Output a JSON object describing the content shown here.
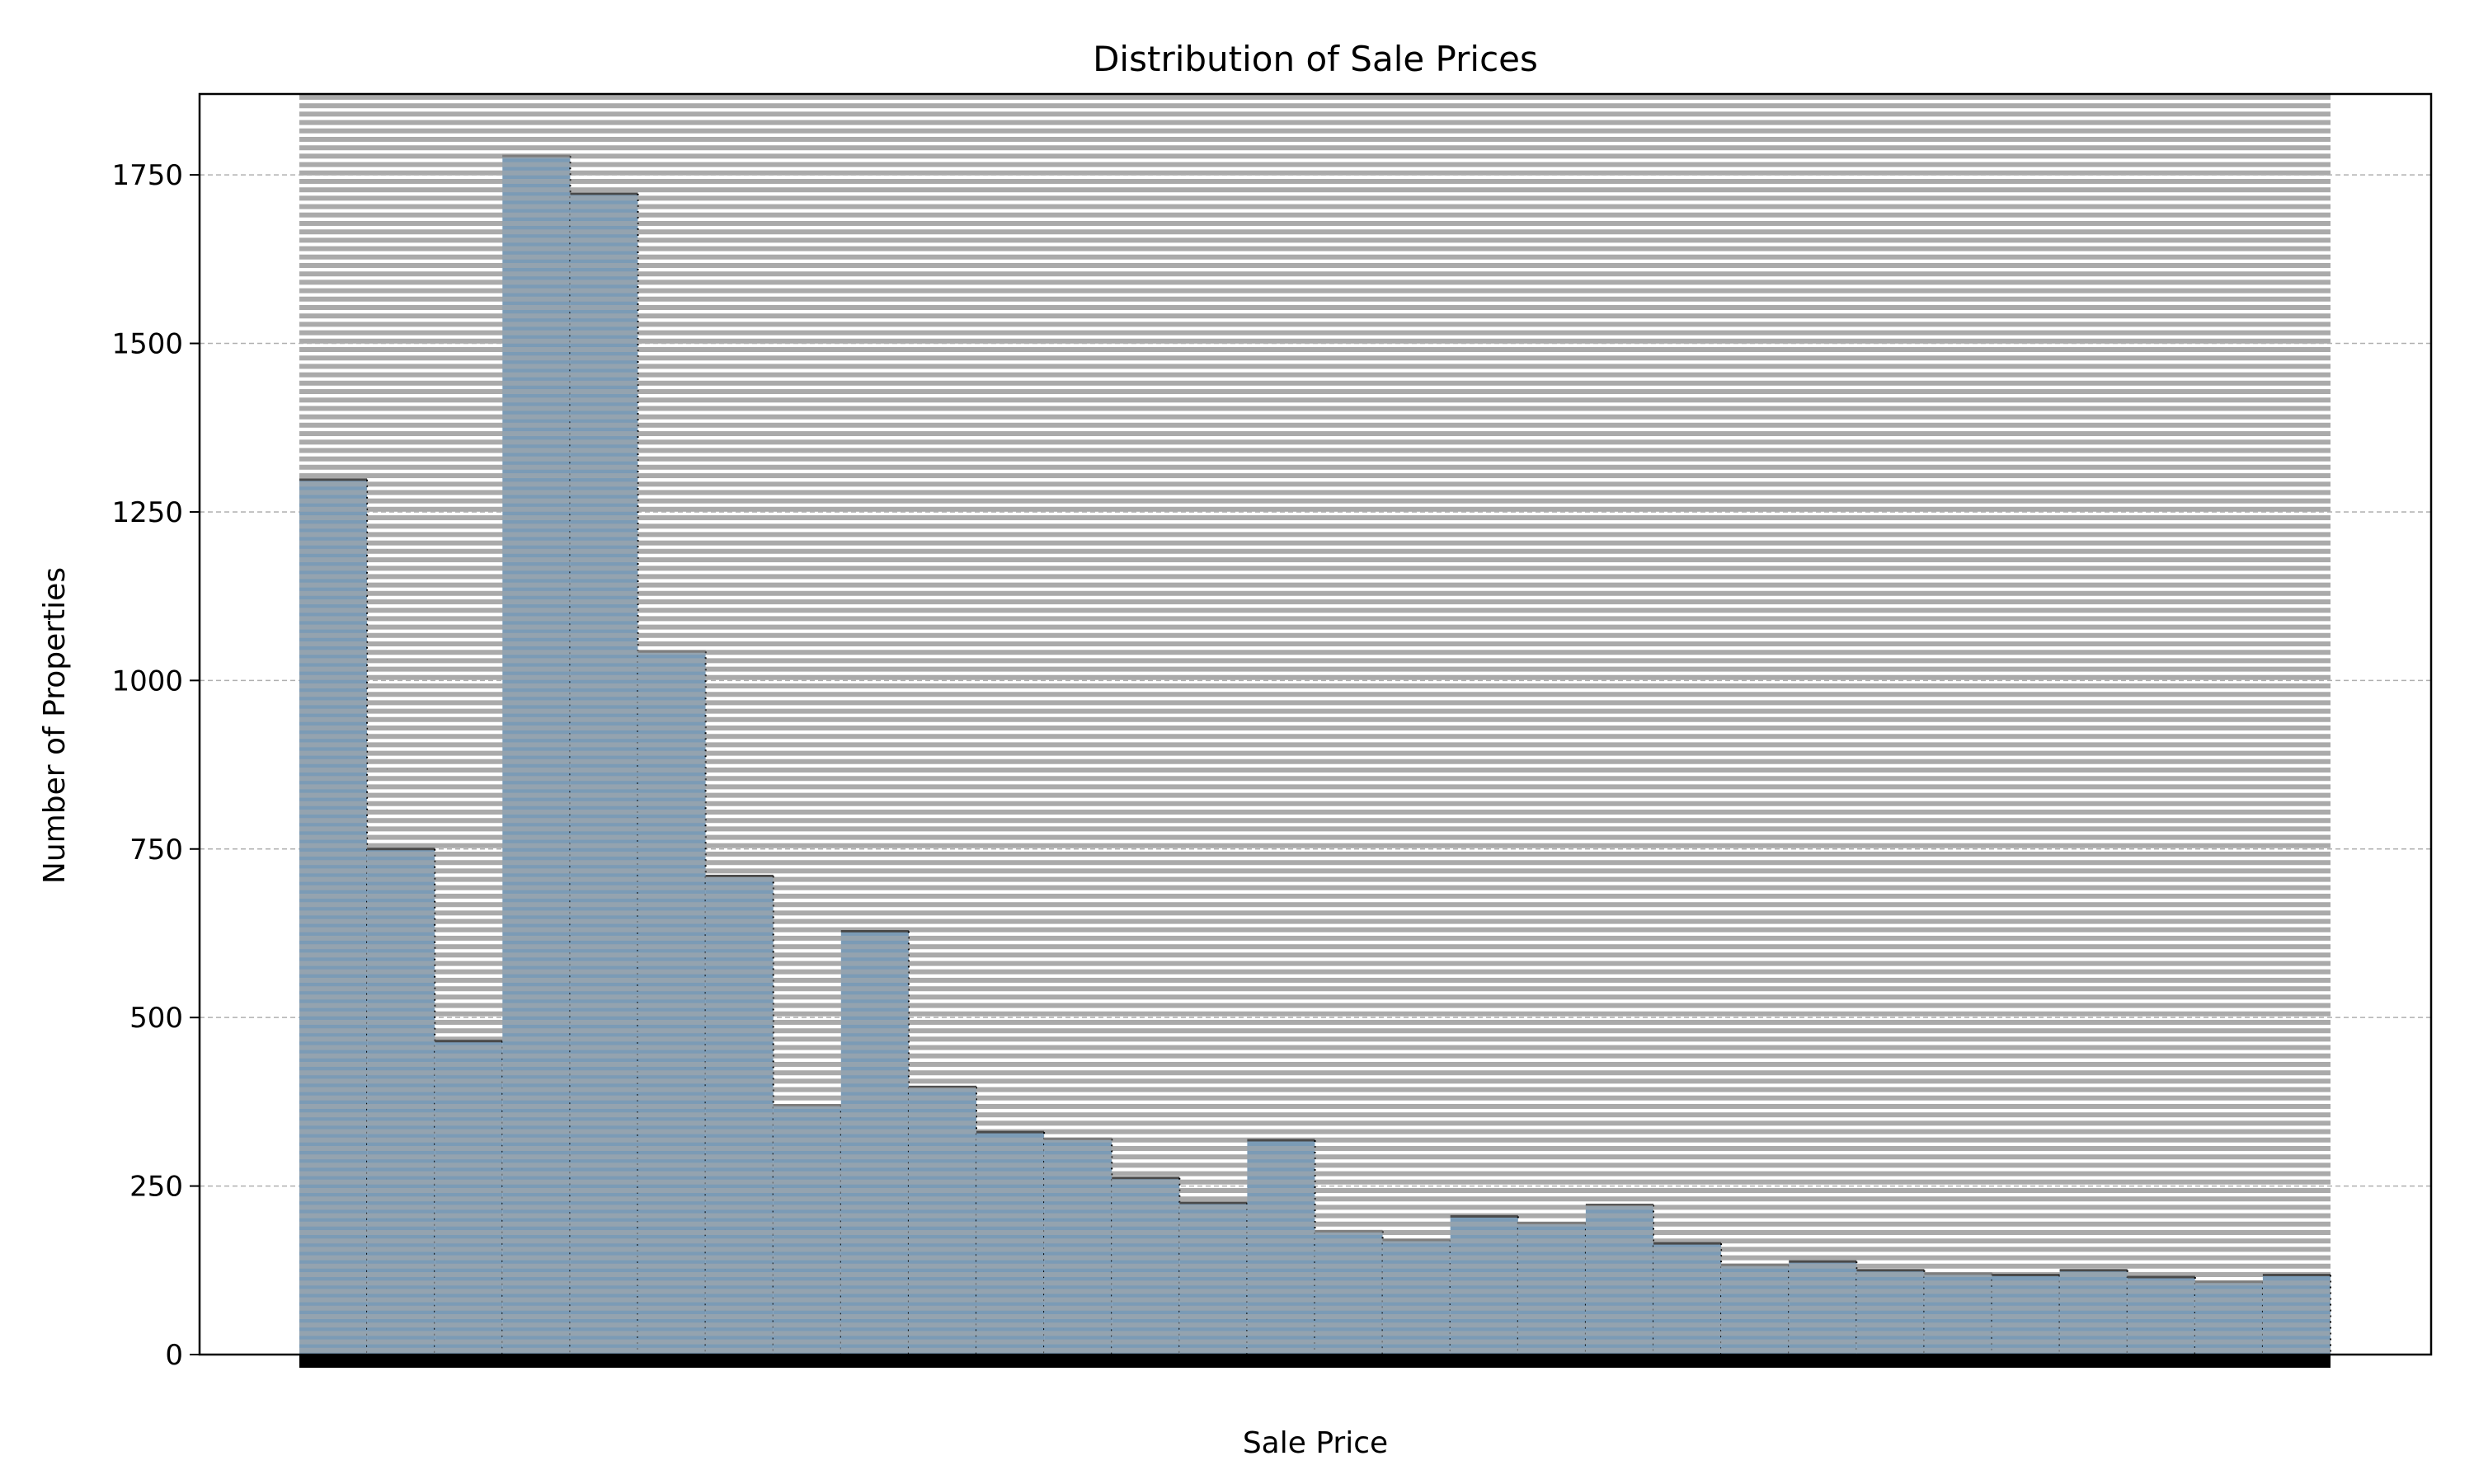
{
  "chart_data": {
    "type": "bar",
    "title": "Distribution of Sale Prices",
    "xlabel": "Sale Price",
    "ylabel": "Number of Properties",
    "ylim": [
      0,
      1870
    ],
    "yticks": [
      0,
      250,
      500,
      750,
      1000,
      1250,
      1500,
      1750
    ],
    "grid": "y-dashed",
    "bar_color": "#7b9bb6",
    "hatch_color": "#aaaaaa",
    "values": [
      1298,
      750,
      465,
      1778,
      1722,
      1043,
      710,
      370,
      628,
      397,
      330,
      320,
      262,
      225,
      318,
      183,
      170,
      205,
      195,
      222,
      165,
      133,
      138,
      125,
      120,
      118,
      125,
      115,
      108,
      118
    ]
  }
}
